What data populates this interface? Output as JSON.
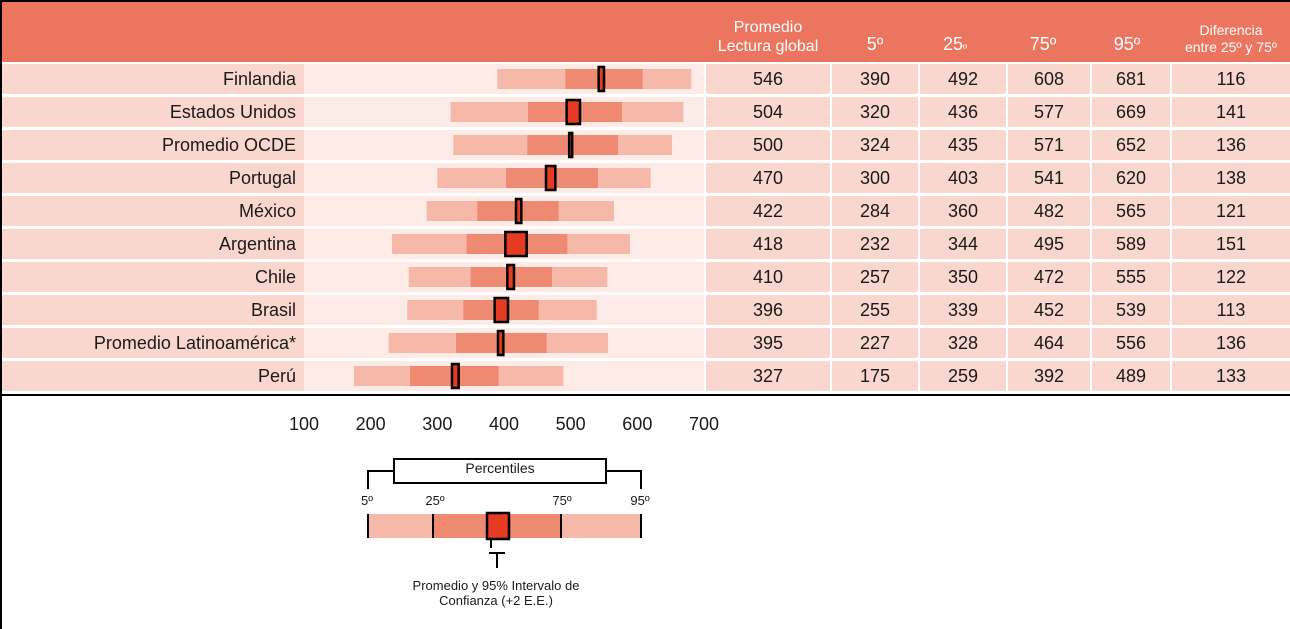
{
  "columns": {
    "mean": [
      "Promedio",
      "Lectura global"
    ],
    "p5": "5º",
    "p25": "25",
    "p25_sup": "º",
    "p75": "75º",
    "p95": "95º",
    "diff": [
      "Diferencia",
      "entre 25º y 75º"
    ]
  },
  "chart_data": {
    "type": "box-percentile",
    "xticks": [
      "100",
      "200",
      "300",
      "400",
      "500",
      "600",
      "700"
    ],
    "xlim": [
      100,
      700
    ],
    "rows": [
      {
        "country": "Finlandia",
        "mean": "546",
        "p5": "390",
        "p25": "492",
        "p75": "608",
        "p95": "681",
        "diff": "116",
        "ci": [
          542,
          550
        ]
      },
      {
        "country": "Estados Unidos",
        "mean": "504",
        "p5": "320",
        "p25": "436",
        "p75": "577",
        "p95": "669",
        "diff": "141",
        "ci": [
          494,
          514
        ]
      },
      {
        "country": "Promedio OCDE",
        "mean": "500",
        "p5": "324",
        "p25": "435",
        "p75": "571",
        "p95": "652",
        "diff": "136",
        "ci": [
          499,
          501
        ]
      },
      {
        "country": "Portugal",
        "mean": "470",
        "p5": "300",
        "p25": "403",
        "p75": "541",
        "p95": "620",
        "diff": "138",
        "ci": [
          463,
          477
        ]
      },
      {
        "country": "México",
        "mean": "422",
        "p5": "284",
        "p25": "360",
        "p75": "482",
        "p95": "565",
        "diff": "121",
        "ci": [
          418,
          426
        ]
      },
      {
        "country": "Argentina",
        "mean": "418",
        "p5": "232",
        "p25": "344",
        "p75": "495",
        "p95": "589",
        "diff": "151",
        "ci": [
          402,
          434
        ]
      },
      {
        "country": "Chile",
        "mean": "410",
        "p5": "257",
        "p25": "350",
        "p75": "472",
        "p95": "555",
        "diff": "122",
        "ci": [
          405,
          415
        ]
      },
      {
        "country": "Brasil",
        "mean": "396",
        "p5": "255",
        "p25": "339",
        "p75": "452",
        "p95": "539",
        "diff": "113",
        "ci": [
          386,
          406
        ]
      },
      {
        "country": "Promedio Latinoamérica*",
        "mean": "395",
        "p5": "227",
        "p25": "328",
        "p75": "464",
        "p95": "556",
        "diff": "136",
        "ci": [
          391,
          399
        ]
      },
      {
        "country": "Perú",
        "mean": "327",
        "p5": "175",
        "p25": "259",
        "p75": "392",
        "p95": "489",
        "diff": "133",
        "ci": [
          322,
          332
        ]
      }
    ],
    "colors": {
      "outer": "#f6b8a9",
      "inner": "#ee8a72",
      "mean": "#e53b22",
      "header": "#ec7560"
    }
  },
  "legend": {
    "title": "Percentiles",
    "p5": "5º",
    "p25": "25º",
    "p75": "75º",
    "p95": "95º",
    "caption_line1": "Promedio y 95% Intervalo de",
    "caption_line2": "Confianza  (+2 E.E.)"
  }
}
